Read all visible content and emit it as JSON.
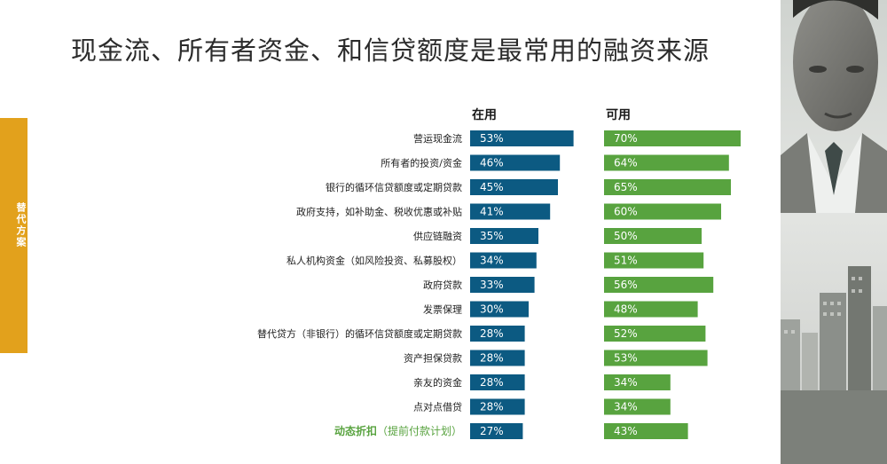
{
  "page": {
    "title": "现金流、所有者资金、和信贷额度是最常用的融资来源",
    "side_tab": "替代方案",
    "colors": {
      "in_use": "#0c5a82",
      "available": "#58a33f",
      "tab": "#e2a11c",
      "highlight_label": "#58a33f"
    }
  },
  "chart_data": {
    "type": "bar",
    "orientation": "horizontal",
    "title": "现金流、所有者资金、和信贷额度是最常用的融资来源",
    "categories": [
      "营运现金流",
      "所有者的投资/资金",
      "银行的循环信贷额度或定期贷款",
      "政府支持，如补助金、税收优惠或补贴",
      "供应链融资",
      "私人机构资金（如风险投资、私募股权）",
      "政府贷款",
      "发票保理",
      "替代贷方（非银行）的循环信贷额度或定期贷款",
      "资产担保贷款",
      "亲友的资金",
      "点对点借贷",
      "动态折扣（提前付款计划）"
    ],
    "highlight_category": {
      "index": 12,
      "bold_part": "动态折扣",
      "normal_part": "（提前付款计划）"
    },
    "series": [
      {
        "name": "在用",
        "color": "#0c5a82",
        "values": [
          53,
          46,
          45,
          41,
          35,
          34,
          33,
          30,
          28,
          28,
          28,
          28,
          27
        ]
      },
      {
        "name": "可用",
        "color": "#58a33f",
        "values": [
          70,
          64,
          65,
          60,
          50,
          51,
          56,
          48,
          52,
          53,
          34,
          34,
          43
        ]
      }
    ],
    "value_suffix": "%",
    "legend": "column headers above bars",
    "grid": false
  }
}
